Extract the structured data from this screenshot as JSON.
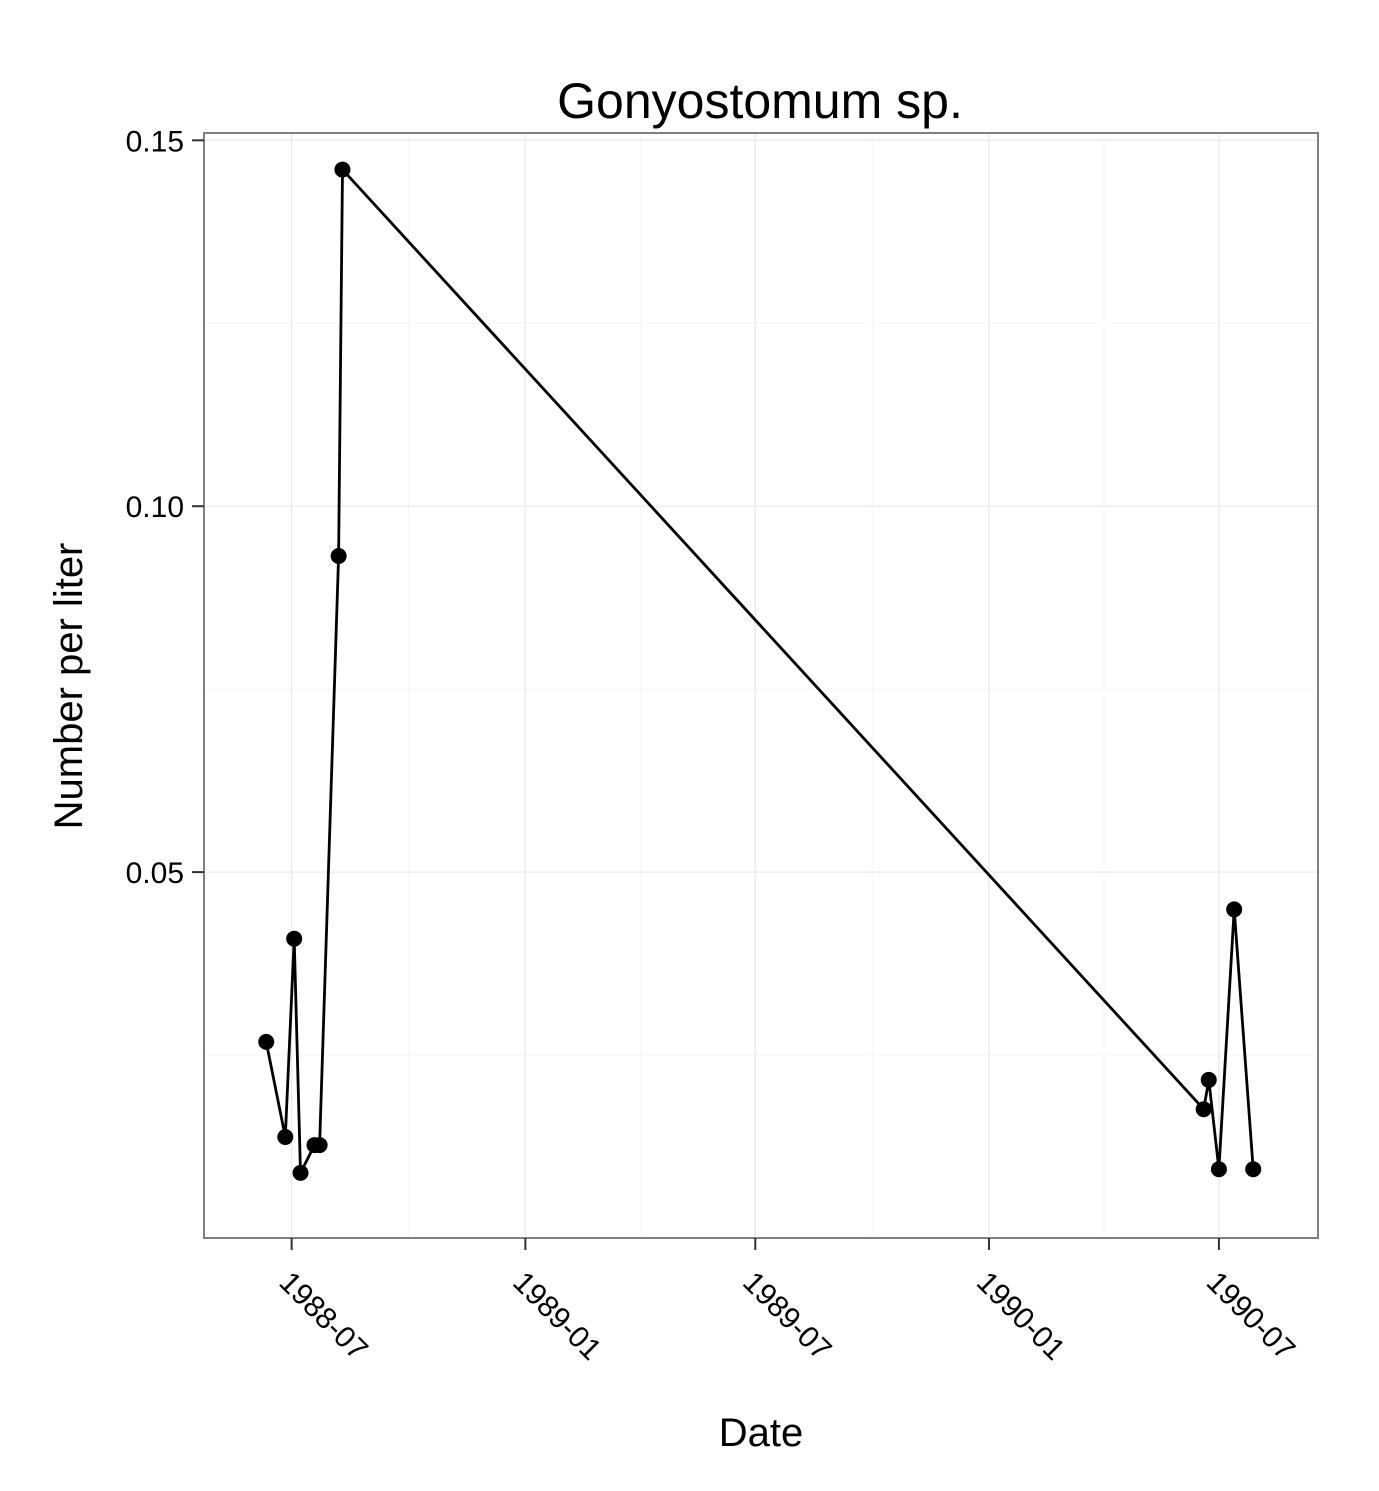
{
  "chart_data": {
    "type": "line",
    "title": "Gonyostomum sp.",
    "xlabel": "Date",
    "ylabel": "Number per liter",
    "x_type": "date",
    "xlim": [
      "1988-04-23",
      "1990-09-17"
    ],
    "ylim": [
      0,
      0.151
    ],
    "x_ticks": [
      "1988-07-01",
      "1989-01-01",
      "1989-07-01",
      "1990-01-01",
      "1990-07-01"
    ],
    "x_tick_labels": [
      "1988-07",
      "1989-01",
      "1989-07",
      "1990-01",
      "1990-07"
    ],
    "y_ticks": [
      0.05,
      0.1,
      0.15
    ],
    "y_tick_labels": [
      "0.05",
      "0.10",
      "0.15"
    ],
    "grid": true,
    "series": [
      {
        "x": [
          "1988-06-11",
          "1988-06-26",
          "1988-07-03",
          "1988-07-08",
          "1988-07-19",
          "1988-07-23",
          "1988-08-07",
          "1988-08-10",
          "1990-06-19",
          "1990-06-23",
          "1990-07-01",
          "1990-07-13",
          "1990-07-28"
        ],
        "y": [
          0.0268,
          0.0138,
          0.0409,
          0.0089,
          0.0127,
          0.0127,
          0.0932,
          0.146,
          0.0176,
          0.0216,
          0.0094,
          0.0449,
          0.0094
        ]
      }
    ]
  }
}
